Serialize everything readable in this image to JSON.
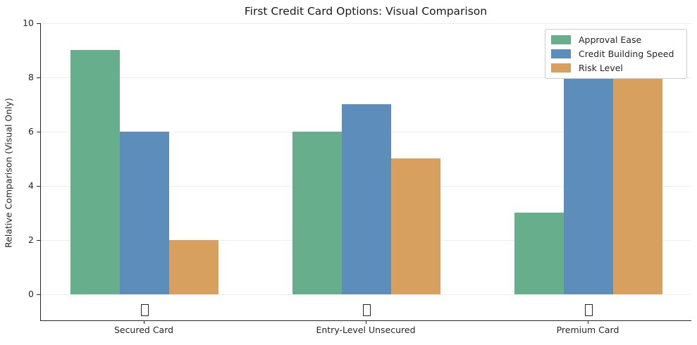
{
  "chart_data": {
    "type": "bar",
    "title": "First Credit Card Options: Visual Comparison",
    "ylabel": "Relative Comparison (Visual Only)",
    "xlabel": "",
    "categories": [
      "Secured Card",
      "Entry-Level Unsecured",
      "Premium Card"
    ],
    "series": [
      {
        "name": "Approval Ease",
        "color": "#66AE8C",
        "values": [
          9,
          6,
          3
        ]
      },
      {
        "name": "Credit Building Speed",
        "color": "#5D8DBA",
        "values": [
          6,
          7,
          8
        ]
      },
      {
        "name": "Risk Level",
        "color": "#D8A05E",
        "values": [
          2,
          5,
          8
        ]
      }
    ],
    "ylim": [
      -1,
      10
    ],
    "yticks": [
      0,
      2,
      4,
      6,
      8,
      10
    ],
    "grid": "horizontal-only",
    "grid_color": "#ececec",
    "legend_position": "upper-right",
    "category_marker_icon": "missing-emoji-tofu-box",
    "background_color": "#ffffff"
  }
}
